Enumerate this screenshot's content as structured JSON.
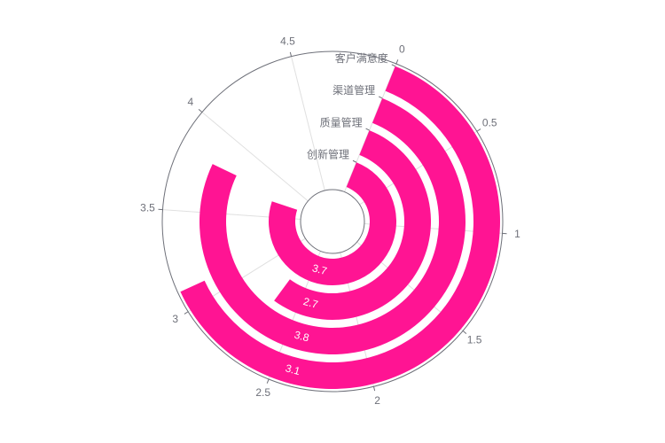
{
  "chart_data": {
    "type": "bar",
    "coordinate": "polar",
    "categories": [
      "创新管理",
      "质量管理",
      "渠道管理",
      "客户满意度"
    ],
    "values": [
      3.7,
      2.7,
      3.8,
      3.1
    ],
    "angle_ticks": [
      "0",
      "0.5",
      "1",
      "1.5",
      "2",
      "2.5",
      "3",
      "3.5",
      "4",
      "4.5"
    ],
    "angle_max": 5,
    "colors": {
      "bar": "#ff1493",
      "label": "#ffffff"
    },
    "grid": true,
    "legend": "none"
  }
}
